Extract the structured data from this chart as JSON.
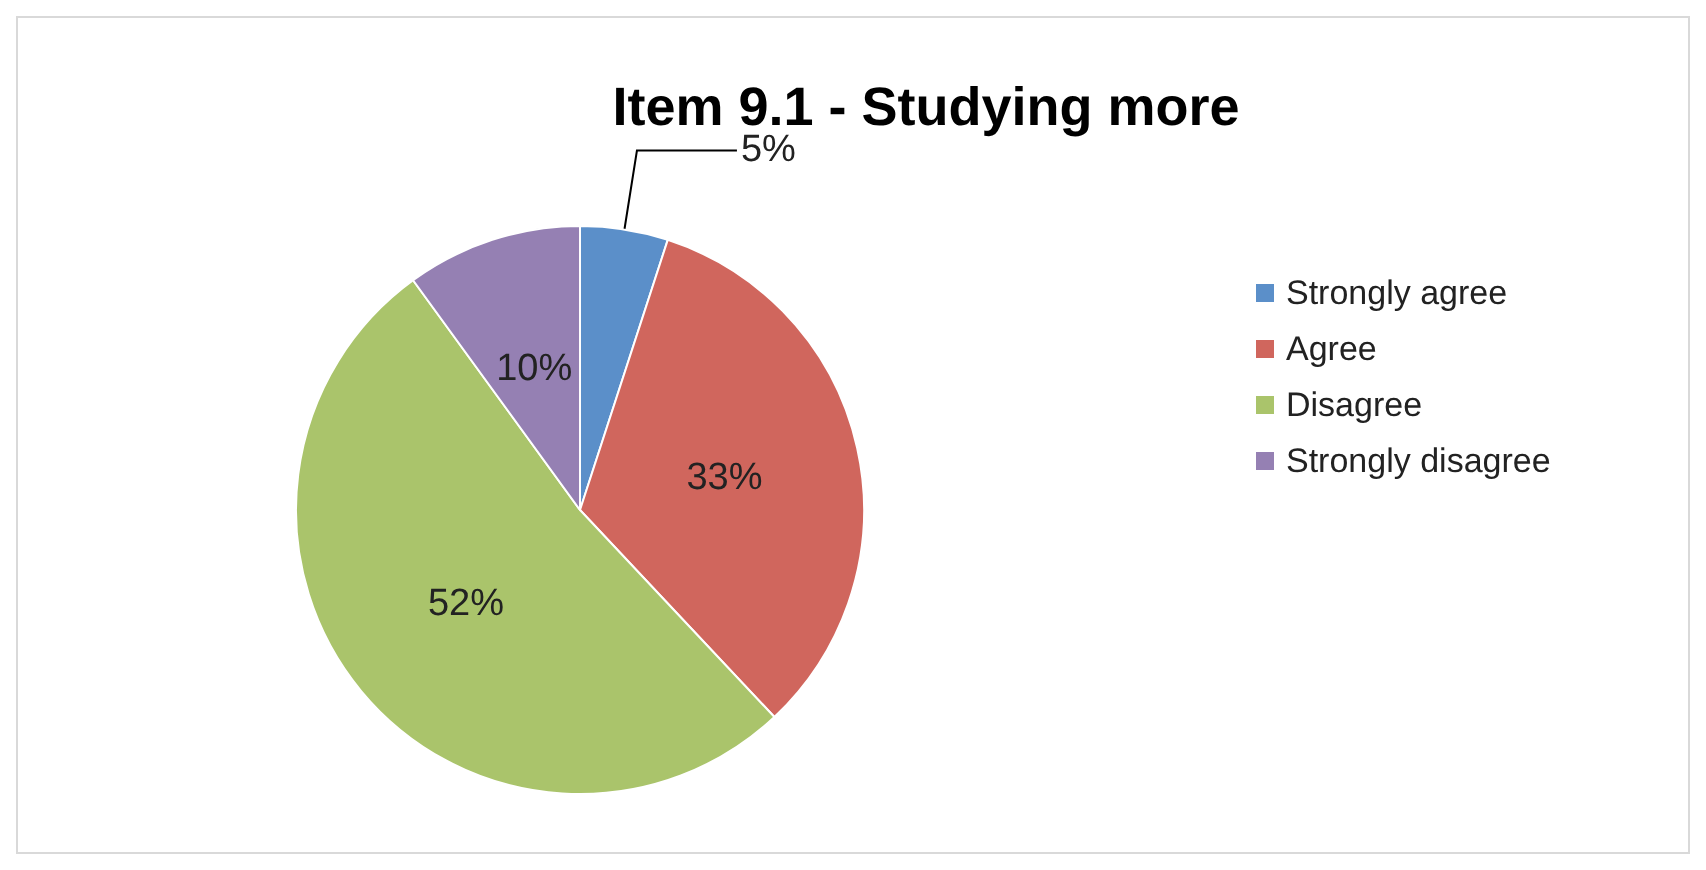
{
  "chart_data": {
    "type": "pie",
    "title": "Item 9.1 - Studying more",
    "categories": [
      "Strongly agree",
      "Agree",
      "Disagree",
      "Strongly disagree"
    ],
    "values": [
      5,
      33,
      52,
      10
    ],
    "colors": [
      "#5b8fc9",
      "#d0665d",
      "#aac46b",
      "#9580b3"
    ],
    "value_labels": [
      "5%",
      "33%",
      "52%",
      "10%"
    ],
    "legend": "right"
  }
}
